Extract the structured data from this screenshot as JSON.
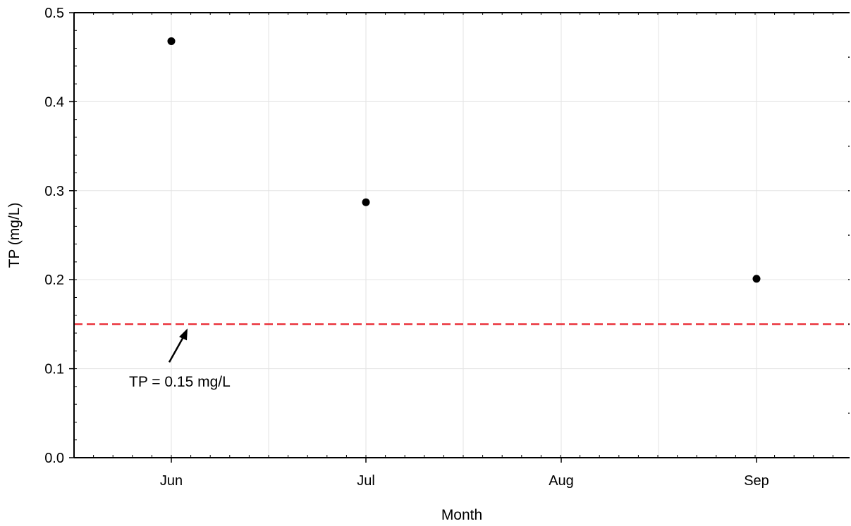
{
  "chart_data": {
    "type": "scatter",
    "title": "",
    "xlabel": "Month",
    "ylabel": "TP (mg/L)",
    "categories": [
      "Jun",
      "Jul",
      "Aug",
      "Sep"
    ],
    "ylim": [
      0.0,
      0.5
    ],
    "yticks": [
      "0.0",
      "0.1",
      "0.2",
      "0.3",
      "0.4",
      "0.5"
    ],
    "grid": true,
    "legend": "none",
    "series": [
      {
        "points": [
          {
            "x": "Jun",
            "y": 0.468
          },
          {
            "x": "Jul",
            "y": 0.287
          },
          {
            "x": "Sep",
            "y": 0.201
          }
        ],
        "color": "#000000"
      }
    ],
    "reference_line": {
      "y": 0.15,
      "style": "dashed",
      "color": "#e8202a",
      "label": "TP = 0.15 mg/L"
    }
  }
}
